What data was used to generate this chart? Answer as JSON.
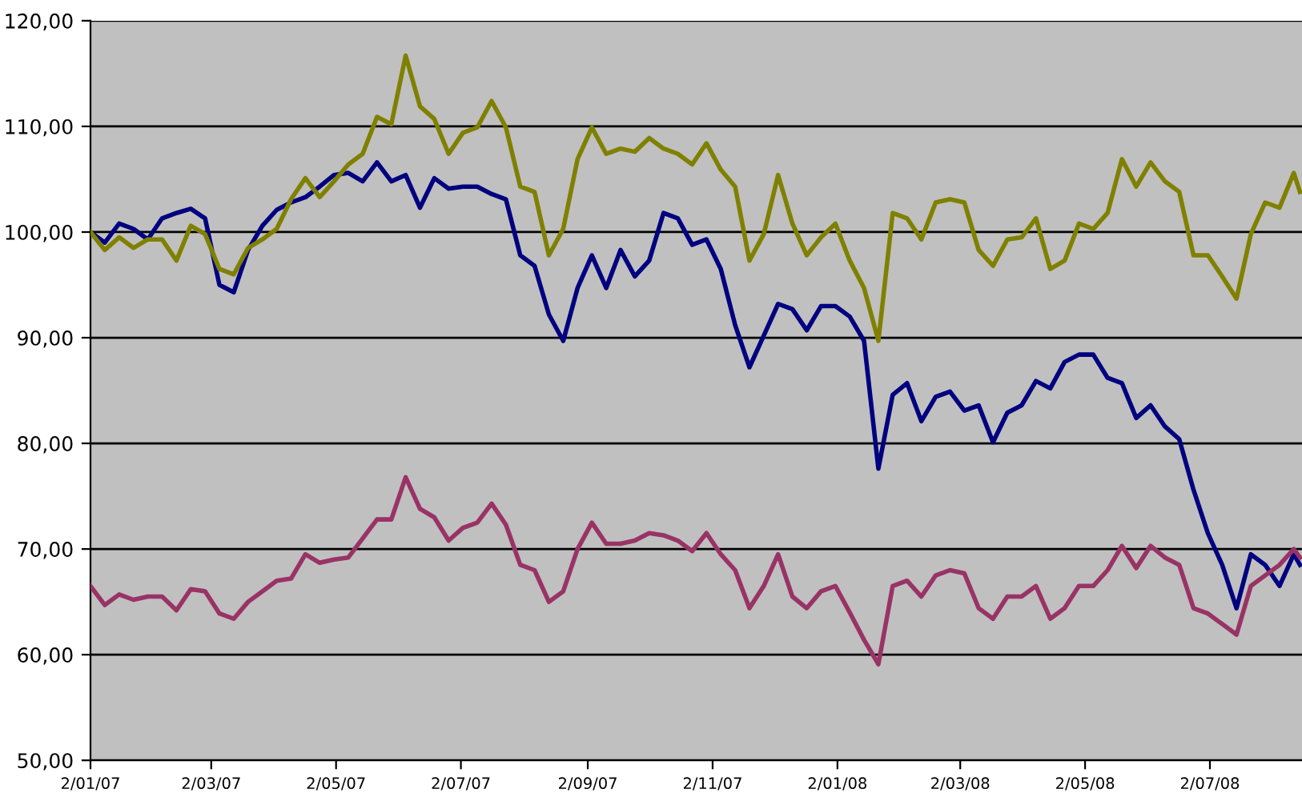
{
  "chart_data": {
    "type": "line",
    "x": [
      "2007-01-02",
      "2007-01-09",
      "2007-01-16",
      "2007-01-23",
      "2007-01-30",
      "2007-02-06",
      "2007-02-13",
      "2007-02-20",
      "2007-02-27",
      "2007-03-06",
      "2007-03-13",
      "2007-03-20",
      "2007-03-27",
      "2007-04-03",
      "2007-04-10",
      "2007-04-17",
      "2007-04-24",
      "2007-05-01",
      "2007-05-08",
      "2007-05-15",
      "2007-05-22",
      "2007-05-29",
      "2007-06-05",
      "2007-06-12",
      "2007-06-19",
      "2007-06-26",
      "2007-07-03",
      "2007-07-10",
      "2007-07-17",
      "2007-07-24",
      "2007-07-31",
      "2007-08-07",
      "2007-08-14",
      "2007-08-21",
      "2007-08-28",
      "2007-09-04",
      "2007-09-11",
      "2007-09-18",
      "2007-09-25",
      "2007-10-02",
      "2007-10-09",
      "2007-10-16",
      "2007-10-23",
      "2007-10-30",
      "2007-11-06",
      "2007-11-13",
      "2007-11-20",
      "2007-11-27",
      "2007-12-04",
      "2007-12-11",
      "2007-12-18",
      "2007-12-25",
      "2008-01-01",
      "2008-01-08",
      "2008-01-15",
      "2008-01-22",
      "2008-01-29",
      "2008-02-05",
      "2008-02-12",
      "2008-02-19",
      "2008-02-26",
      "2008-03-04",
      "2008-03-11",
      "2008-03-18",
      "2008-03-25",
      "2008-04-01",
      "2008-04-08",
      "2008-04-15",
      "2008-04-22",
      "2008-04-29",
      "2008-05-06",
      "2008-05-13",
      "2008-05-20",
      "2008-05-27",
      "2008-06-03",
      "2008-06-10",
      "2008-06-17",
      "2008-06-24",
      "2008-07-01",
      "2008-07-08",
      "2008-07-15",
      "2008-07-22",
      "2008-07-29",
      "2008-08-05",
      "2008-08-12",
      "2008-08-15"
    ],
    "series": [
      {
        "color": "#000080",
        "values": [
          100.0,
          99.0,
          100.8,
          100.3,
          99.3,
          101.3,
          101.8,
          102.2,
          101.3,
          95.0,
          94.3,
          98.3,
          100.6,
          102.1,
          102.8,
          103.3,
          104.3,
          105.4,
          105.6,
          104.8,
          106.6,
          104.8,
          105.4,
          102.3,
          105.1,
          104.1,
          104.3,
          104.3,
          103.6,
          103.1,
          97.8,
          96.8,
          92.2,
          89.7,
          94.7,
          97.8,
          94.7,
          98.3,
          95.8,
          97.3,
          101.8,
          101.3,
          98.8,
          99.3,
          96.5,
          91.2,
          87.2,
          90.2,
          93.2,
          92.7,
          90.7,
          93.0,
          93.0,
          92.0,
          89.7,
          77.6,
          84.6,
          85.7,
          82.1,
          84.4,
          84.9,
          83.1,
          83.6,
          80.1,
          82.9,
          83.6,
          85.9,
          85.2,
          87.7,
          88.4,
          88.4,
          86.2,
          85.7,
          82.4,
          83.6,
          81.6,
          80.4,
          75.6,
          71.5,
          68.5,
          64.4,
          69.5,
          68.5,
          66.5,
          69.5,
          68.5
        ]
      },
      {
        "color": "#808000",
        "values": [
          100.0,
          98.3,
          99.5,
          98.5,
          99.3,
          99.3,
          97.3,
          100.6,
          99.8,
          96.5,
          96.0,
          98.5,
          99.3,
          100.3,
          103.1,
          105.1,
          103.3,
          104.8,
          106.4,
          107.4,
          110.9,
          110.2,
          116.7,
          111.9,
          110.7,
          107.4,
          109.4,
          109.9,
          112.4,
          109.9,
          104.3,
          103.8,
          97.8,
          100.3,
          106.9,
          109.9,
          107.4,
          107.9,
          107.6,
          108.9,
          107.9,
          107.4,
          106.4,
          108.4,
          105.9,
          104.3,
          97.3,
          99.8,
          105.4,
          100.8,
          97.8,
          99.5,
          100.8,
          97.3,
          94.7,
          89.7,
          101.8,
          101.3,
          99.3,
          102.8,
          103.1,
          102.8,
          98.3,
          96.8,
          99.3,
          99.5,
          101.3,
          96.5,
          97.3,
          100.8,
          100.3,
          101.8,
          106.9,
          104.3,
          106.6,
          104.8,
          103.8,
          97.8,
          97.8,
          95.8,
          93.7,
          99.8,
          102.8,
          102.3,
          105.6,
          103.8
        ]
      },
      {
        "color": "#993366",
        "values": [
          66.5,
          64.7,
          65.7,
          65.2,
          65.5,
          65.5,
          64.2,
          66.2,
          66.0,
          63.9,
          63.4,
          65.0,
          66.0,
          67.0,
          67.2,
          69.5,
          68.7,
          69.0,
          69.2,
          71.0,
          72.8,
          72.8,
          76.8,
          73.8,
          73.0,
          70.8,
          72.0,
          72.5,
          74.3,
          72.3,
          68.5,
          68.0,
          65.0,
          66.0,
          70.0,
          72.5,
          70.5,
          70.5,
          70.8,
          71.5,
          71.3,
          70.8,
          69.8,
          71.5,
          69.5,
          68.0,
          64.4,
          66.5,
          69.5,
          65.5,
          64.4,
          66.0,
          66.5,
          64.0,
          61.4,
          59.1,
          66.5,
          67.0,
          65.5,
          67.5,
          68.0,
          67.7,
          64.4,
          63.4,
          65.5,
          65.5,
          66.5,
          63.4,
          64.4,
          66.5,
          66.5,
          68.0,
          70.3,
          68.2,
          70.3,
          69.2,
          68.5,
          64.4,
          63.9,
          62.9,
          61.9,
          66.5,
          67.5,
          68.5,
          70.0,
          69.2
        ]
      }
    ],
    "xlim": [
      "2007-01-02",
      "2008-08-16"
    ],
    "xticks": [
      {
        "value": "2007-01-02",
        "label": "2/01/07"
      },
      {
        "value": "2007-03-02",
        "label": "2/03/07"
      },
      {
        "value": "2007-05-02",
        "label": "2/05/07"
      },
      {
        "value": "2007-07-02",
        "label": "2/07/07"
      },
      {
        "value": "2007-09-02",
        "label": "2/09/07"
      },
      {
        "value": "2007-11-02",
        "label": "2/11/07"
      },
      {
        "value": "2008-01-02",
        "label": "2/01/08"
      },
      {
        "value": "2008-03-02",
        "label": "2/03/08"
      },
      {
        "value": "2008-05-02",
        "label": "2/05/08"
      },
      {
        "value": "2008-07-02",
        "label": "2/07/08"
      }
    ],
    "ylim": [
      50,
      120
    ],
    "yticks": [
      {
        "value": 50,
        "label": "50,00"
      },
      {
        "value": 60,
        "label": "60,00"
      },
      {
        "value": 70,
        "label": "70,00"
      },
      {
        "value": 80,
        "label": "80,00"
      },
      {
        "value": 90,
        "label": "90,00"
      },
      {
        "value": 100,
        "label": "100,00"
      },
      {
        "value": 110,
        "label": "110,00"
      },
      {
        "value": 120,
        "label": "120,00"
      }
    ],
    "grid": "y",
    "legend": false,
    "marker": "none",
    "line_style": "solid"
  }
}
